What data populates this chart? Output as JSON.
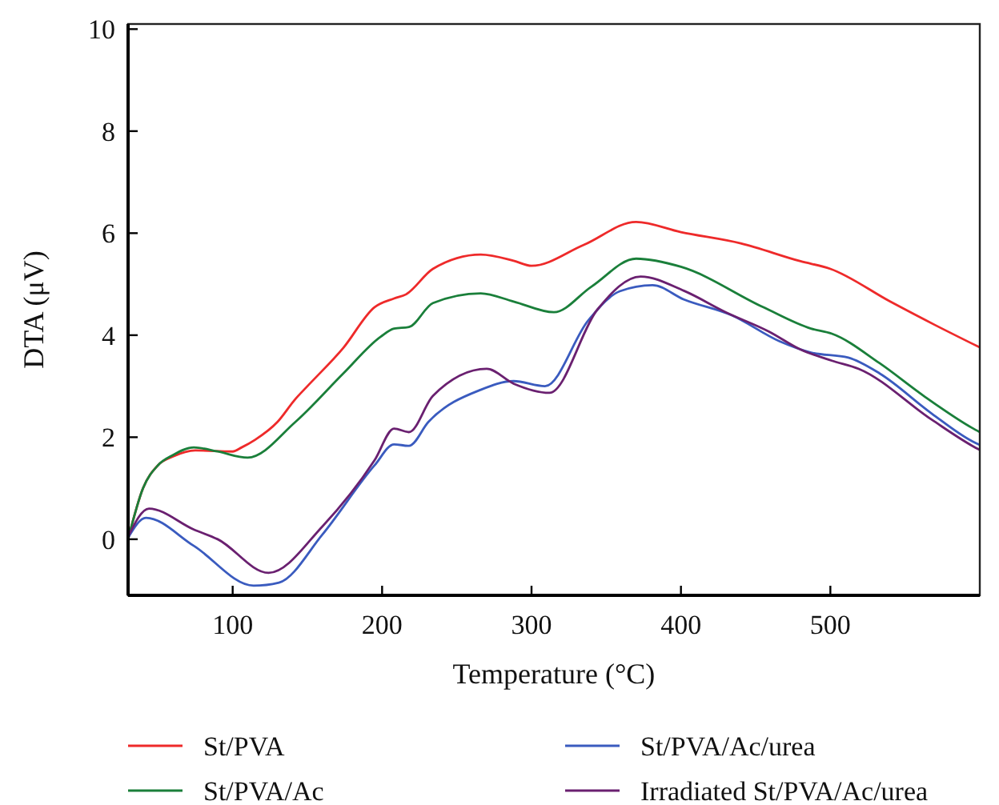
{
  "chart_data": {
    "type": "line",
    "xlabel": "Temperature (°C)",
    "ylabel": "DTA (μV)",
    "xlim": [
      30,
      600
    ],
    "xticks": [
      100,
      200,
      300,
      400,
      500
    ],
    "ylim": [
      -1.1,
      10.1
    ],
    "yticks": [
      0,
      2,
      4,
      6,
      8,
      10
    ],
    "grid": false,
    "legend": "bottom",
    "marker": "none",
    "line_style": "solid",
    "series": [
      {
        "name": "St/PVA",
        "color": "#ee2a2a",
        "x": [
          30,
          40,
          50,
          60,
          75,
          100,
          106,
          115,
          130,
          142,
          150,
          174,
          195,
          208,
          216,
          234,
          266,
          288,
          300,
          335,
          370,
          400,
          440,
          480,
          500,
          540,
          570,
          600
        ],
        "values": [
          0,
          1.0,
          1.45,
          1.62,
          1.74,
          1.72,
          1.8,
          1.95,
          2.3,
          2.75,
          3.0,
          3.75,
          4.55,
          4.72,
          4.8,
          5.3,
          5.58,
          5.46,
          5.36,
          5.77,
          6.22,
          6.02,
          5.8,
          5.45,
          5.3,
          4.66,
          4.2,
          3.76
        ]
      },
      {
        "name": "St/PVA/Ac",
        "color": "#1a7f3a",
        "x": [
          30,
          40,
          50,
          60,
          74,
          90,
          110,
          142,
          174,
          199,
          208,
          218,
          234,
          266,
          288,
          315,
          340,
          370,
          400,
          455,
          487,
          501,
          533,
          562,
          595,
          600
        ],
        "values": [
          0,
          1.0,
          1.45,
          1.65,
          1.8,
          1.72,
          1.6,
          2.3,
          3.25,
          3.97,
          4.13,
          4.16,
          4.63,
          4.82,
          4.66,
          4.45,
          4.95,
          5.5,
          5.34,
          4.55,
          4.13,
          4.03,
          3.45,
          2.82,
          2.18,
          2.1
        ]
      },
      {
        "name": "St/PVA/Ac/urea",
        "color": "#3a5bbf",
        "x": [
          30,
          42,
          74,
          114,
          131,
          160,
          195,
          208,
          218,
          231,
          266,
          288,
          309,
          338,
          359,
          381,
          402,
          434,
          466,
          487,
          512,
          533,
          568,
          595,
          600
        ],
        "values": [
          0.03,
          0.42,
          -0.13,
          -0.91,
          -0.85,
          0.09,
          1.45,
          1.86,
          1.83,
          2.3,
          2.93,
          3.1,
          3.0,
          4.29,
          4.86,
          4.98,
          4.7,
          4.39,
          3.88,
          3.66,
          3.56,
          3.25,
          2.46,
          1.92,
          1.85
        ]
      },
      {
        "name": "Irradiated St/PVA/Ac/urea",
        "color": "#6a2070",
        "x": [
          30,
          44,
          74,
          90,
          124,
          160,
          195,
          208,
          218,
          234,
          270,
          288,
          312,
          344,
          373,
          402,
          430,
          459,
          480,
          501,
          519,
          568,
          595,
          600
        ],
        "values": [
          0.05,
          0.6,
          0.19,
          0.0,
          -0.66,
          0.25,
          1.55,
          2.17,
          2.1,
          2.81,
          3.34,
          3.05,
          2.87,
          4.5,
          5.15,
          4.87,
          4.45,
          4.07,
          3.72,
          3.5,
          3.34,
          2.34,
          1.83,
          1.75
        ]
      }
    ]
  }
}
